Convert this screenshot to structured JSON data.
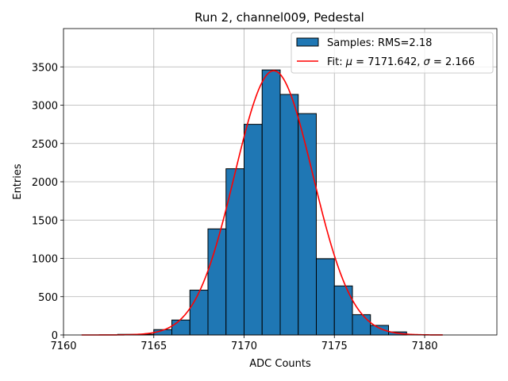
{
  "chart_data": {
    "type": "bar",
    "title": "Run 2, channel009, Pedestal",
    "xlabel": "ADC Counts",
    "ylabel": "Entries",
    "xlim": [
      7160.0,
      7184.0
    ],
    "ylim": [
      0,
      4000
    ],
    "xticks": [
      7160,
      7165,
      7170,
      7175,
      7180
    ],
    "yticks": [
      0,
      500,
      1000,
      1500,
      2000,
      2500,
      3000,
      3500
    ],
    "grid": true,
    "legend_position": "top-right",
    "histogram": {
      "name": "Samples: RMS=2.18",
      "color": "#1f77b4",
      "edge_color": "#000000",
      "bin_edges": [
        7163,
        7164,
        7165,
        7166,
        7167,
        7168,
        7169,
        7170,
        7171,
        7172,
        7173,
        7174,
        7175,
        7176,
        7177,
        7178,
        7179
      ],
      "counts": [
        8,
        10,
        70,
        195,
        585,
        1385,
        2170,
        2750,
        3460,
        3140,
        2890,
        995,
        640,
        265,
        125,
        40
      ]
    },
    "fit": {
      "name": "Fit: μ = 7171.642, σ = 2.166",
      "label_prefix": "Fit: ",
      "mu_symbol": "μ",
      "mu_value": " = 7171.642, ",
      "sigma_symbol": "σ",
      "sigma_value": " = 2.166",
      "color": "#ff0000",
      "mu": 7171.642,
      "sigma": 2.166,
      "amplitude": 3450,
      "x_range": [
        7161,
        7181
      ]
    }
  }
}
